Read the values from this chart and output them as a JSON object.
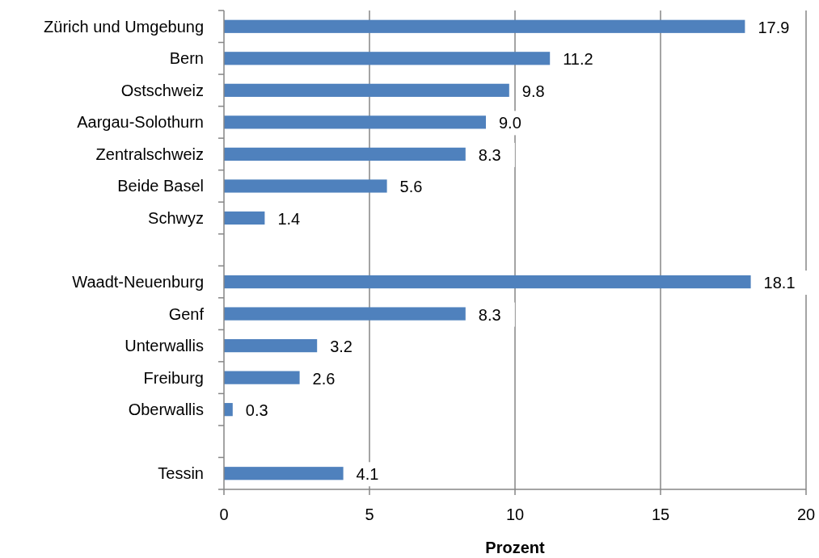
{
  "chart_data": {
    "type": "bar",
    "orientation": "horizontal",
    "xlabel": "Prozent",
    "categories": [
      "Zürich und Umgebung",
      "Bern",
      "Ostschweiz",
      "Aargau-Solothurn",
      "Zentralschweiz",
      "Beide Basel",
      "Schwyz",
      null,
      "Waadt-Neuenburg",
      "Genf",
      "Unterwallis",
      "Freiburg",
      "Oberwallis",
      null,
      "Tessin"
    ],
    "values": [
      17.9,
      11.2,
      9.8,
      9.0,
      8.3,
      5.6,
      1.4,
      null,
      18.1,
      8.3,
      3.2,
      2.6,
      0.3,
      null,
      4.1
    ],
    "value_labels": [
      "17.9",
      "11.2",
      "9.8",
      "9.0",
      "8.3",
      "5.6",
      "1.4",
      null,
      "18.1",
      "8.3",
      "3.2",
      "2.6",
      "0.3",
      null,
      "4.1"
    ],
    "color": "#4f81bd",
    "xlim": [
      0,
      20
    ],
    "xticks": [
      0,
      5,
      10,
      15,
      20
    ],
    "grid": "x"
  }
}
